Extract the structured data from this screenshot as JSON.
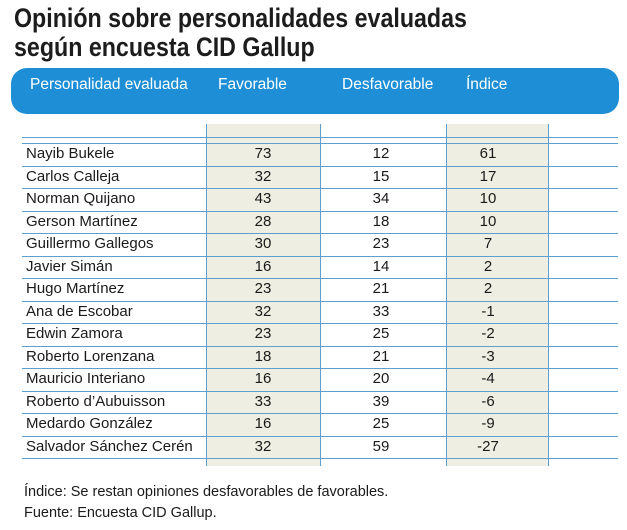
{
  "title": {
    "line1": "Opinión sobre personalidades evaluadas",
    "line2": "según encuesta CID Gallup"
  },
  "header": {
    "col_name": "Personalidad evaluada",
    "col_fav": "Favorable",
    "col_desfav": "Desfavorable",
    "col_indice": "Índice"
  },
  "chart_data": {
    "type": "table",
    "columns": [
      "Personalidad evaluada",
      "Favorable",
      "Desfavorable",
      "Índice"
    ],
    "rows": [
      {
        "name": "Nayib Bukele",
        "favorable": "73",
        "desfavorable": "12",
        "indice": "61"
      },
      {
        "name": "Carlos Calleja",
        "favorable": "32",
        "desfavorable": "15",
        "indice": "17"
      },
      {
        "name": "Norman Quijano",
        "favorable": "43",
        "desfavorable": "34",
        "indice": "10"
      },
      {
        "name": "Gerson Martínez",
        "favorable": "28",
        "desfavorable": "18",
        "indice": "10"
      },
      {
        "name": "Guillermo Gallegos",
        "favorable": "30",
        "desfavorable": "23",
        "indice": "7"
      },
      {
        "name": "Javier Simán",
        "favorable": "16",
        "desfavorable": "14",
        "indice": "2"
      },
      {
        "name": "Hugo Martínez",
        "favorable": "23",
        "desfavorable": "21",
        "indice": "2"
      },
      {
        "name": "Ana de Escobar",
        "favorable": "32",
        "desfavorable": "33",
        "indice": "-1"
      },
      {
        "name": "Edwin Zamora",
        "favorable": "23",
        "desfavorable": "25",
        "indice": "-2"
      },
      {
        "name": "Roberto Lorenzana",
        "favorable": "18",
        "desfavorable": "21",
        "indice": "-3"
      },
      {
        "name": "Mauricio Interiano",
        "favorable": "16",
        "desfavorable": "20",
        "indice": "-4"
      },
      {
        "name": "Roberto d’Aubuisson",
        "favorable": "33",
        "desfavorable": "39",
        "indice": "-6"
      },
      {
        "name": "Medardo González",
        "favorable": "16",
        "desfavorable": "25",
        "indice": "-9"
      },
      {
        "name": "Salvador Sánchez Cerén",
        "favorable": "32",
        "desfavorable": "59",
        "indice": "-27"
      }
    ]
  },
  "notes": {
    "indice_note": "Índice: Se restan opiniones desfavorables de favorables.",
    "source": "Fuente: Encuesta CID Gallup."
  },
  "colors": {
    "header_bg": "#1e8fd6",
    "column_shade": "#efeee2",
    "grid_line": "#5d9fd0"
  }
}
